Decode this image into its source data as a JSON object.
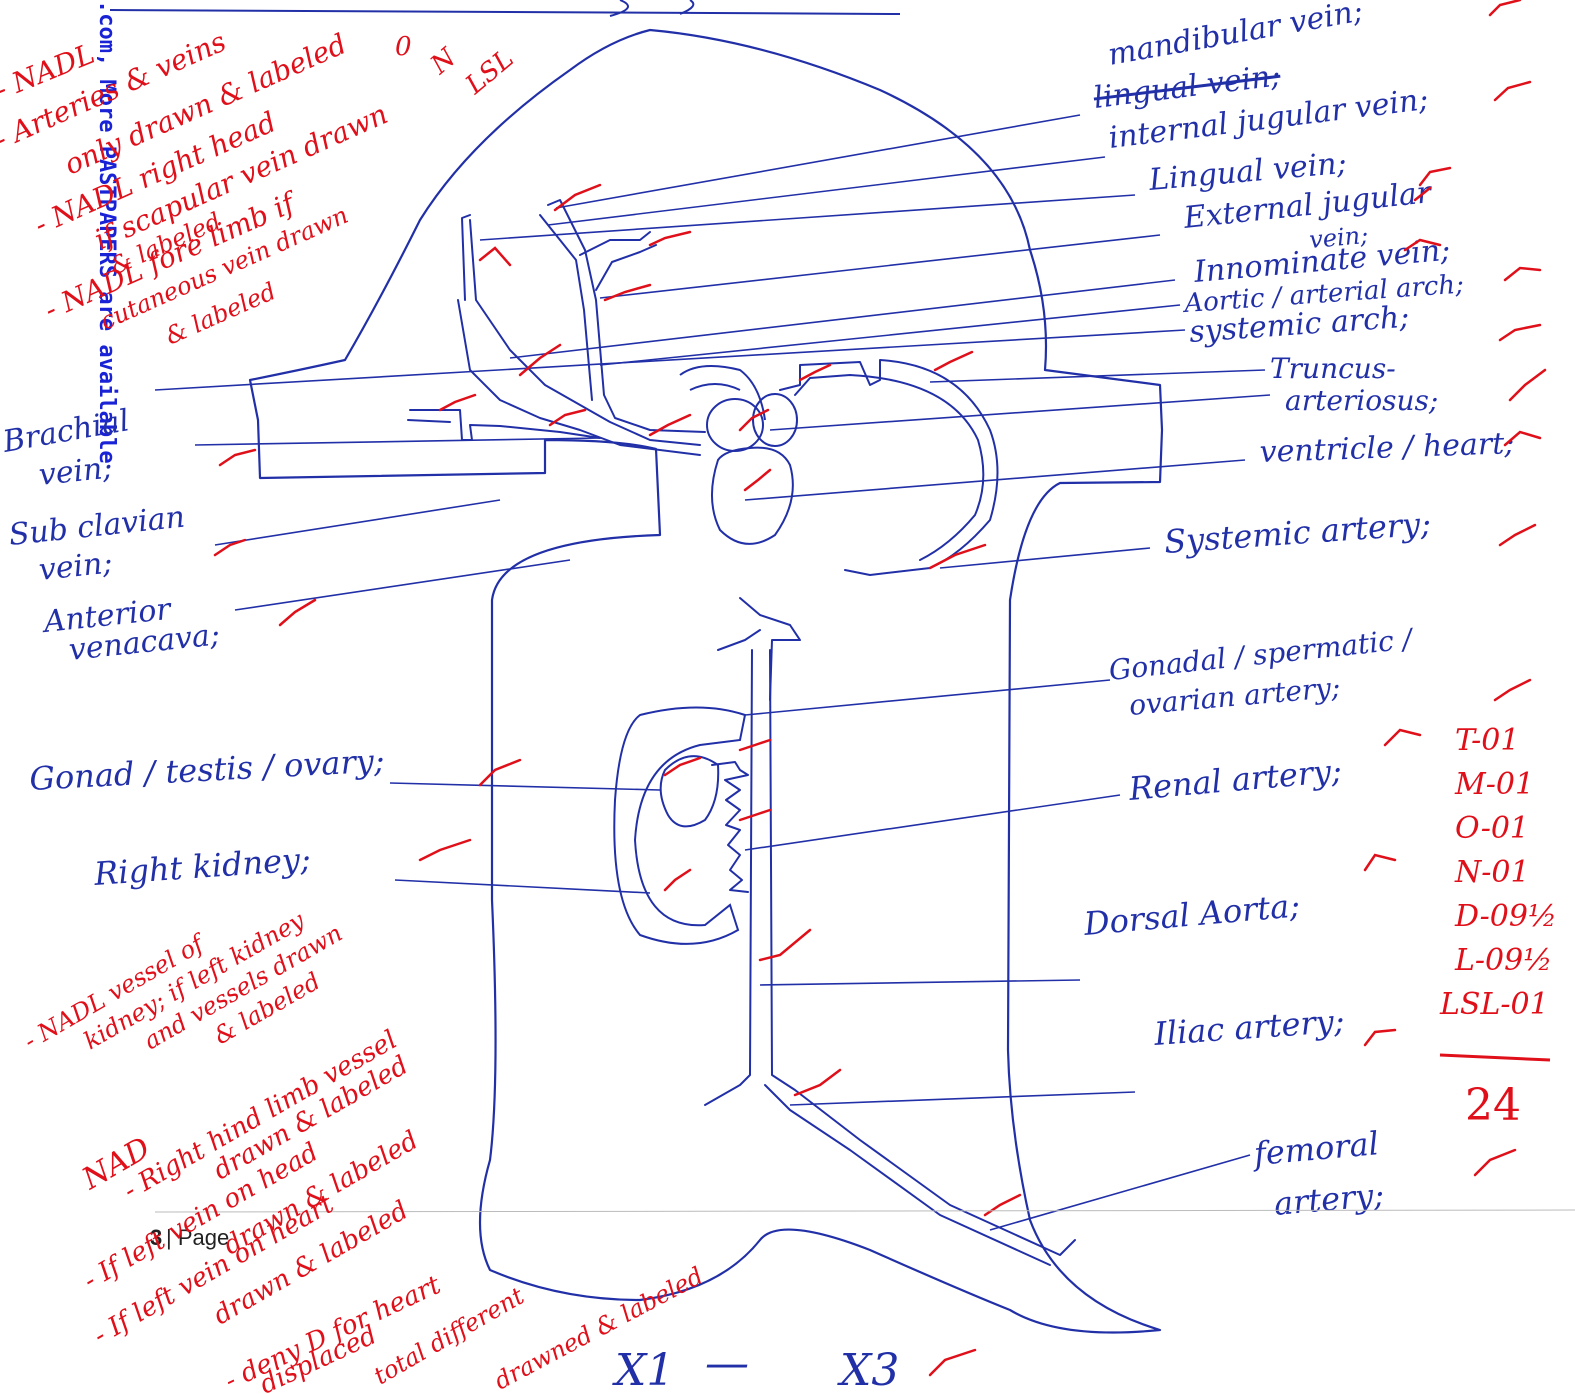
{
  "watermark": ".com, More PASTPAPERS are available",
  "footer": {
    "page_number": "3",
    "page_word": "| Page"
  },
  "colors": {
    "ink_blue": "#2230a8",
    "ink_red": "#e0101a",
    "watermark": "#1a22d6"
  },
  "labels_right": {
    "mandibular_vein": "mandibular vein;",
    "lingual_vein_struck": "lingual vein;",
    "internal_jugular_vein": "internal jugular vein;",
    "lingual_vein": "Lingual vein;",
    "external_jugular_vein_1": "External jugular",
    "external_jugular_vein_2": "vein;",
    "innominate_vein": "Innominate vein;",
    "aortic_arch": "Aortic / arterial arch;",
    "systemic_arch": "systemic arch;",
    "truncus_1": "Truncus-",
    "truncus_2": "arteriosus;",
    "ventricle": "ventricle / heart;",
    "systemic_artery": "Systemic artery;",
    "gonadal_artery_1": "Gonadal / spermatic /",
    "gonadal_artery_2": "ovarian artery;",
    "renal_artery": "Renal artery;",
    "dorsal_aorta": "Dorsal Aorta;",
    "iliac_artery": "Iliac artery;",
    "femoral_artery_1": "femoral",
    "femoral_artery_2": "artery;"
  },
  "labels_left": {
    "brachial_vein_1": "Brachial",
    "brachial_vein_2": "vein;",
    "subclavian_vein_1": "Sub clavian",
    "subclavian_vein_2": "vein;",
    "anterior_venacava_1": "Anterior",
    "anterior_venacava_2": "venacava;",
    "gonad": "Gonad / testis / ovary;",
    "right_kidney": "Right kidney;"
  },
  "scale_text": {
    "left": "X1",
    "dash": "—",
    "right": "X3"
  },
  "marking_notes": {
    "top_1": "- NADL",
    "top_2": "- Arteries & veins",
    "top_3": "only drawn & labeled",
    "top_4": "- NADL right head",
    "top_5": "if scapular vein drawn",
    "top_6": "& labeled",
    "top_7": "- NADL fore limb if",
    "top_8": "cutaneous vein drawn",
    "top_9": "& labeled",
    "top_award": "0",
    "top_n": "N",
    "top_lsl": "LSL",
    "mid_1": "- NADL vessel of",
    "mid_2": "kidney; if left kidney",
    "mid_3": "and vessels drawn",
    "mid_4": "& labeled",
    "bot_nad": "NAD",
    "bot_1": "- Right hind limb vessel",
    "bot_2": "drawn & labeled",
    "bot_3": "- If left vein on head",
    "bot_4": "drawn & labeled",
    "bot_5": "- If left vein on heart",
    "bot_6": "drawn & labeled",
    "bot_7": "- deny D for heart",
    "bot_8": "displaced",
    "bot_9": "total different",
    "bot_10": "drawned & labeled"
  },
  "score_breakdown": [
    {
      "code": "T",
      "mark": "-01"
    },
    {
      "code": "M",
      "mark": "-01"
    },
    {
      "code": "O",
      "mark": "-01"
    },
    {
      "code": "N",
      "mark": "-01"
    },
    {
      "code": "D",
      "mark": "-09½"
    },
    {
      "code": "L",
      "mark": "-09½"
    },
    {
      "code": "LSL",
      "mark": "-01"
    }
  ],
  "score_total": "24"
}
